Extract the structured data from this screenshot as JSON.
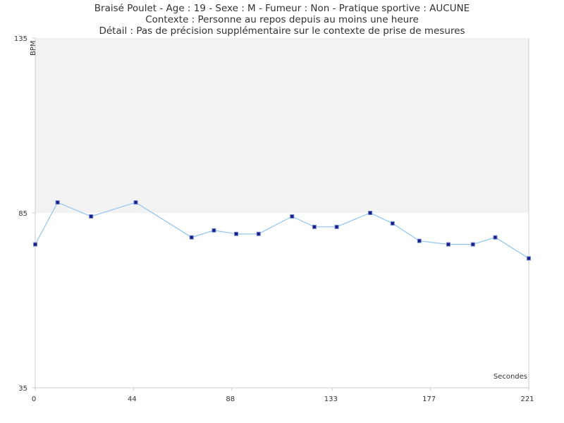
{
  "header": {
    "line1": "Braisé Poulet - Age : 19 - Sexe : M - Fumeur : Non - Pratique sportive : AUCUNE",
    "line2": "Contexte : Personne au repos depuis au moins une heure",
    "line3": "Détail : Pas de précision supplémentaire sur le contexte de prise de mesures"
  },
  "colors": {
    "zone_fill": "#f2f2f2",
    "line": "#8ec4f2",
    "marker_fill": "#1a1a8c",
    "marker_stroke": "#6e86c6",
    "axis": "#cccccc"
  },
  "chart_data": {
    "type": "line",
    "title": "",
    "xlabel": "Secondes",
    "ylabel": "BPM",
    "xlim": [
      0,
      221
    ],
    "ylim": [
      35,
      135
    ],
    "x_ticks": [
      0,
      44,
      88,
      133,
      177,
      221
    ],
    "y_ticks": [
      35,
      85,
      135
    ],
    "shaded_band": {
      "from": 85,
      "to": 135
    },
    "grid": false,
    "series": [
      {
        "x": [
          0,
          10,
          25,
          45,
          70,
          80,
          90,
          100,
          115,
          125,
          135,
          150,
          160,
          172,
          185,
          196,
          206,
          221
        ],
        "values": [
          76,
          88,
          84,
          88,
          78,
          80,
          79,
          79,
          84,
          81,
          81,
          85,
          82,
          77,
          76,
          76,
          78,
          72
        ]
      }
    ]
  }
}
